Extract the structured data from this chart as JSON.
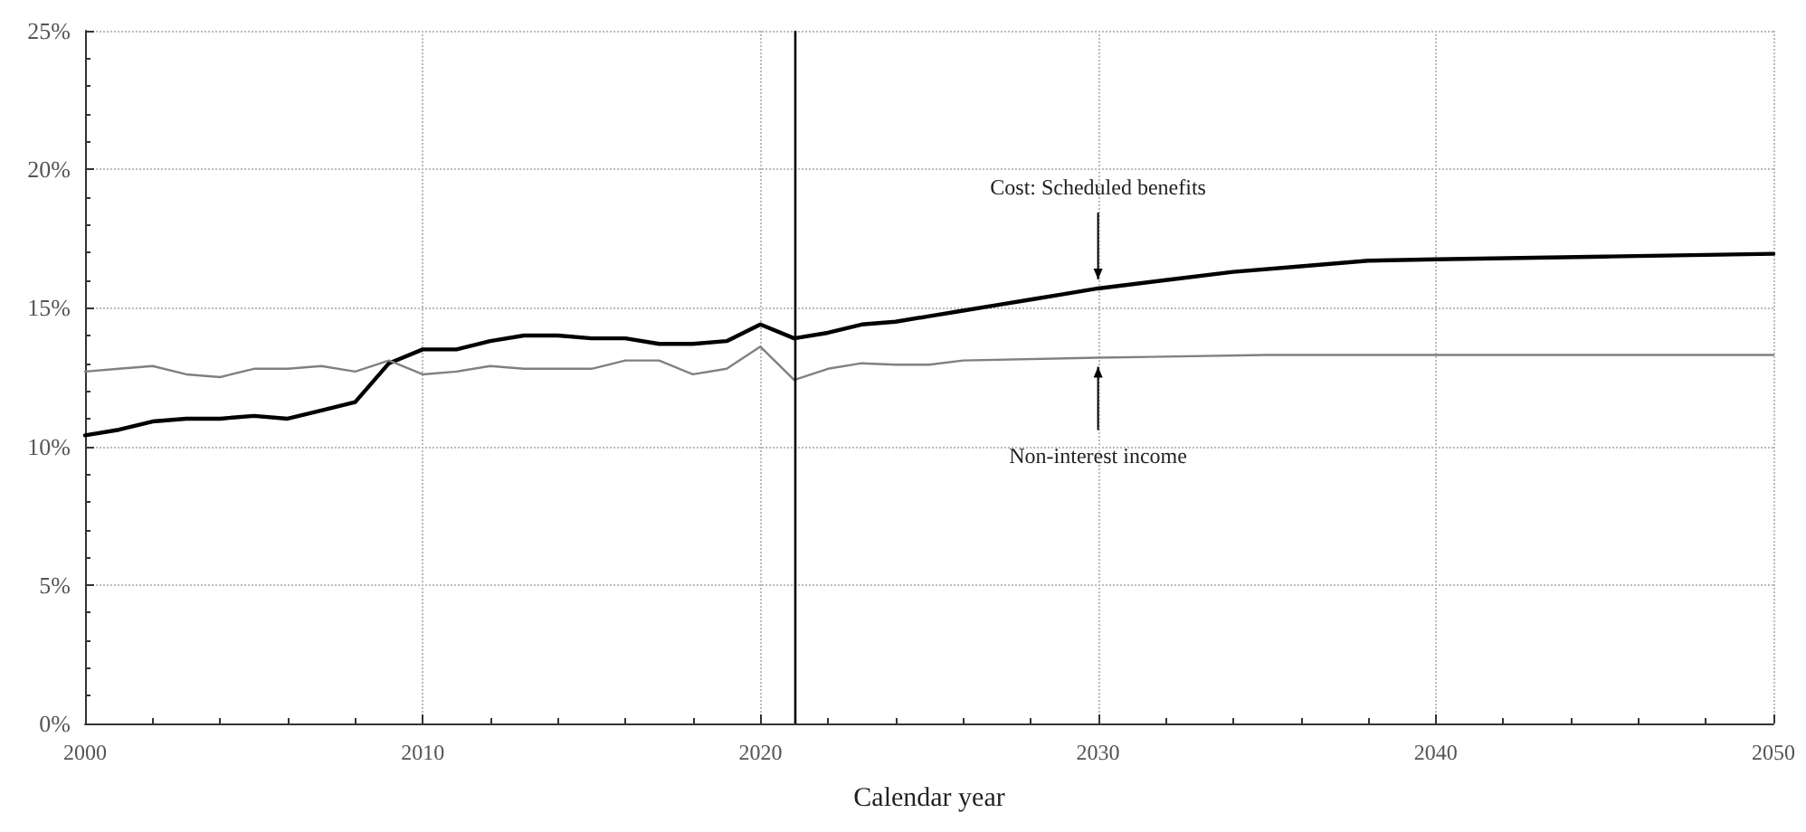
{
  "chart_data": {
    "type": "line",
    "xlabel": "Calendar year",
    "xlim": [
      2000,
      2050
    ],
    "xticks": [
      2000,
      2010,
      2020,
      2030,
      2040,
      2050
    ],
    "ylim": [
      0,
      25
    ],
    "yticks": [
      {
        "value": 0,
        "label": "0%"
      },
      {
        "value": 5,
        "label": "5%"
      },
      {
        "value": 10,
        "label": "10%"
      },
      {
        "value": 15,
        "label": "15%"
      },
      {
        "value": 20,
        "label": "20%"
      },
      {
        "value": 25,
        "label": "25%"
      }
    ],
    "grid": true,
    "marker": "none",
    "line_style": "solid",
    "ref_lines": [
      {
        "axis": "x",
        "value": 2021,
        "color": "#000000"
      }
    ],
    "annotations": [
      {
        "text": "Cost: Scheduled benefits",
        "x": 2030,
        "y": 15.7
      },
      {
        "text": "Non-interest income",
        "x": 2030,
        "y": 13.2
      }
    ],
    "series": [
      {
        "color": "#000000",
        "x": [
          2000,
          2001,
          2002,
          2003,
          2004,
          2005,
          2006,
          2007,
          2008,
          2009,
          2010,
          2011,
          2012,
          2013,
          2014,
          2015,
          2016,
          2017,
          2018,
          2019,
          2020,
          2021,
          2022,
          2023,
          2024,
          2025,
          2026,
          2027,
          2028,
          2029,
          2030,
          2032,
          2034,
          2036,
          2038,
          2040,
          2045,
          2050
        ],
        "values": [
          10.4,
          10.6,
          10.9,
          11.0,
          11.0,
          11.1,
          11.0,
          11.3,
          11.6,
          13.0,
          13.5,
          13.5,
          13.8,
          14.0,
          14.0,
          13.9,
          13.9,
          13.7,
          13.7,
          13.8,
          14.4,
          13.9,
          14.1,
          14.4,
          14.5,
          14.7,
          14.9,
          15.1,
          15.3,
          15.5,
          15.7,
          16.0,
          16.3,
          16.5,
          16.7,
          16.75,
          16.85,
          16.95
        ]
      },
      {
        "color": "#808080",
        "x": [
          2000,
          2001,
          2002,
          2003,
          2004,
          2005,
          2006,
          2007,
          2008,
          2009,
          2010,
          2011,
          2012,
          2013,
          2014,
          2015,
          2016,
          2017,
          2018,
          2019,
          2020,
          2021,
          2022,
          2023,
          2024,
          2025,
          2026,
          2030,
          2035,
          2040,
          2050
        ],
        "values": [
          12.7,
          12.8,
          12.9,
          12.6,
          12.5,
          12.8,
          12.8,
          12.9,
          12.7,
          13.1,
          12.6,
          12.7,
          12.9,
          12.8,
          12.8,
          12.8,
          13.1,
          13.1,
          12.6,
          12.8,
          13.6,
          12.4,
          12.8,
          13.0,
          12.95,
          12.95,
          13.1,
          13.2,
          13.3,
          13.3,
          13.3
        ]
      }
    ]
  }
}
